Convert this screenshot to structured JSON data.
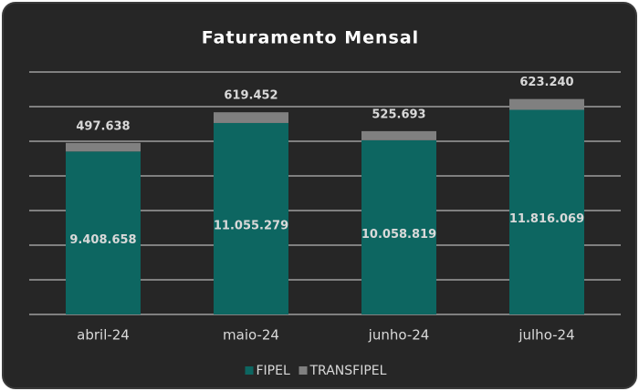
{
  "chart_data": {
    "type": "stacked_bar",
    "title": "Faturamento Mensal",
    "categories": [
      "abril-24",
      "maio-24",
      "junho-24",
      "julho-24"
    ],
    "series": [
      {
        "name": "FIPEL",
        "color": "#0d6661",
        "values": [
          9408658,
          11055279,
          10058819,
          11816069
        ],
        "value_labels": [
          "9.408.658",
          "11.055.279",
          "10.058.819",
          "11.816.069"
        ]
      },
      {
        "name": "TRANSFIPEL",
        "color": "#808080",
        "values": [
          497638,
          619452,
          525693,
          623240
        ],
        "value_labels": [
          "497.638",
          "619.452",
          "525.693",
          "623.240"
        ]
      }
    ],
    "ylim": [
      0,
      14000000
    ],
    "yticks": [
      0,
      2000000,
      4000000,
      6000000,
      8000000,
      10000000,
      12000000,
      14000000
    ],
    "grid": true,
    "legend": "bottom"
  }
}
